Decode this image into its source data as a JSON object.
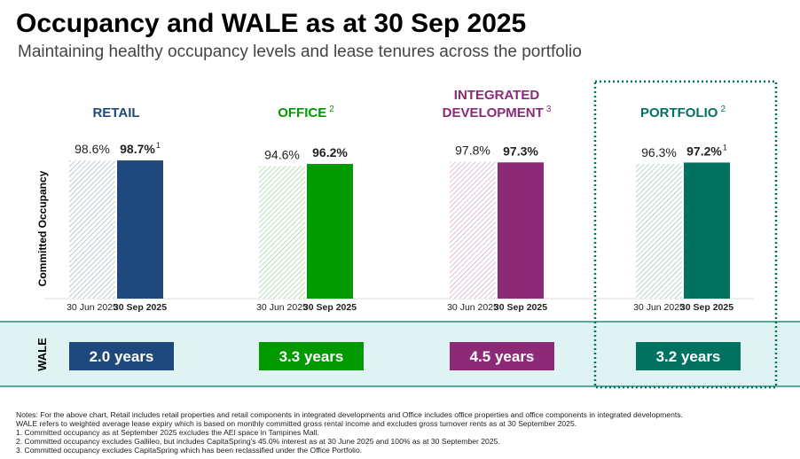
{
  "title": "Occupancy and WALE as at 30 Sep 2025",
  "subtitle": "Maintaining healthy occupancy levels and lease tenures across the portfolio",
  "y_label": "Committed Occupancy",
  "chart_data": [
    {
      "type": "bar",
      "title": [
        "RETAIL"
      ],
      "title_superscript": null,
      "categories": [
        "30 Jun 2025",
        "30 Sep 2025"
      ],
      "values": [
        98.6,
        98.7
      ],
      "value_labels": [
        "98.6%",
        "98.7%"
      ],
      "value_superscripts": [
        null,
        "1"
      ],
      "color": "#1f497d",
      "ylim": [
        0,
        100
      ]
    },
    {
      "type": "bar",
      "title": [
        "OFFICE"
      ],
      "title_superscript": "2",
      "categories": [
        "30 Jun 2025",
        "30 Sep 2025"
      ],
      "values": [
        94.6,
        96.2
      ],
      "value_labels": [
        "94.6%",
        "96.2%"
      ],
      "value_superscripts": [
        null,
        null
      ],
      "color": "#009a00",
      "ylim": [
        0,
        100
      ]
    },
    {
      "type": "bar",
      "title": [
        "INTEGRATED",
        "DEVELOPMENT"
      ],
      "title_superscript": "3",
      "categories": [
        "30 Jun 2025",
        "30 Sep 2025"
      ],
      "values": [
        97.8,
        97.3
      ],
      "value_labels": [
        "97.8%",
        "97.3%"
      ],
      "value_superscripts": [
        null,
        null
      ],
      "color": "#8c2a77",
      "ylim": [
        0,
        100
      ]
    },
    {
      "type": "bar",
      "title": [
        "PORTFOLIO"
      ],
      "title_superscript": "2",
      "categories": [
        "30 Jun 2025",
        "30 Sep 2025"
      ],
      "values": [
        96.3,
        97.2
      ],
      "value_labels": [
        "96.3%",
        "97.2%"
      ],
      "value_superscripts": [
        null,
        "1"
      ],
      "color": "#00725f",
      "ylim": [
        0,
        100
      ]
    }
  ],
  "wale": {
    "label": "WALE",
    "values": [
      "2.0 years",
      "3.3 years",
      "4.5 years",
      "3.2 years"
    ]
  },
  "notes": [
    "Notes: For the above chart, Retail includes retail properties and retail components in integrated developments and Office includes office properties and office components in integrated developments.",
    "WALE refers to weighted average lease expiry which is based on monthly committed gross rental income and excludes gross turnover rents as at 30 September 2025.",
    "1.    Committed occupancy as at September 2025 excludes the AEI space in Tampines Mall.",
    "2.    Committed occupancy excludes Gallileo, but includes CapitaSpring's 45.0% interest as at 30 June 2025 and 100% as at 30 September 2025.",
    "3.    Committed occupancy excludes CapitaSpring which has been reclassified under the Office Portfolio."
  ]
}
